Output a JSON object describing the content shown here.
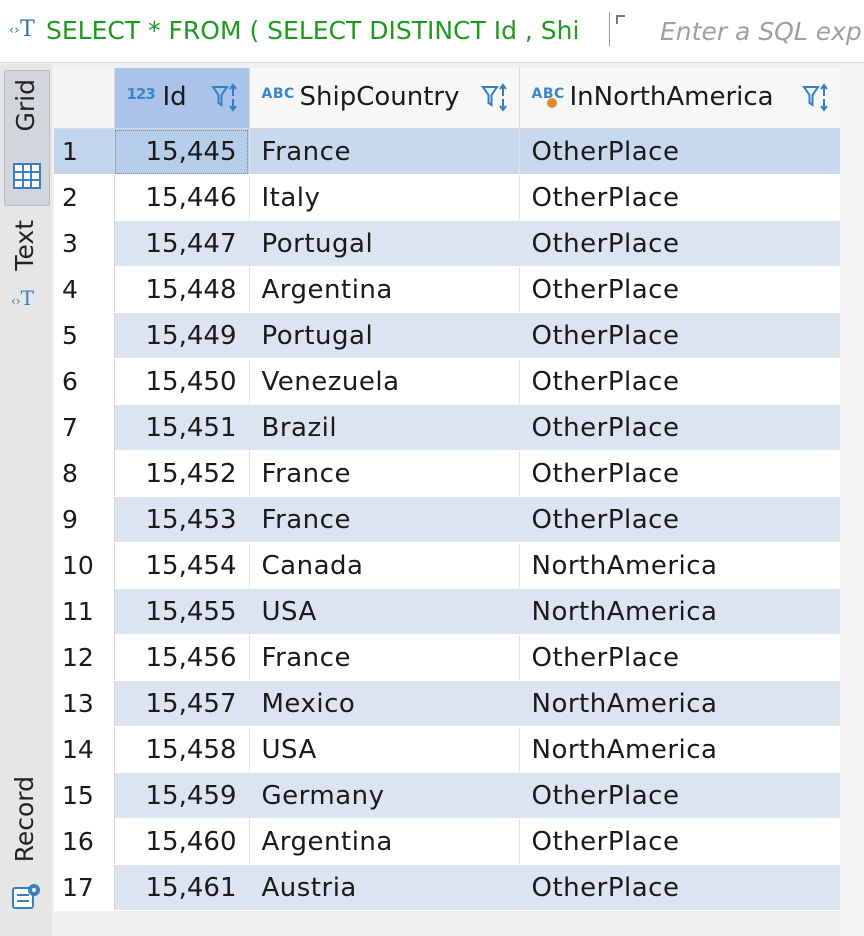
{
  "query": {
    "sql_text": "SELECT * FROM ( SELECT DISTINCT Id , Shi",
    "filter_placeholder": "Enter a SQL exp"
  },
  "sidebar": {
    "tabs": [
      {
        "label": "Grid",
        "icon": "grid-icon",
        "active": true
      },
      {
        "label": "Text",
        "icon": "text-icon",
        "active": false
      },
      {
        "label": "Record",
        "icon": "record-icon",
        "active": false
      }
    ]
  },
  "grid": {
    "columns": [
      {
        "label": "Id",
        "type_icon": "number-type-icon",
        "type_badge": "123"
      },
      {
        "label": "ShipCountry",
        "type_icon": "string-type-icon",
        "type_badge": "ABC"
      },
      {
        "label": "InNorthAmerica",
        "type_icon": "computed-string-type-icon",
        "type_badge": "ABC"
      }
    ],
    "rows": [
      {
        "n": "1",
        "id": "15,445",
        "country": "France",
        "region": "OtherPlace"
      },
      {
        "n": "2",
        "id": "15,446",
        "country": "Italy",
        "region": "OtherPlace"
      },
      {
        "n": "3",
        "id": "15,447",
        "country": "Portugal",
        "region": "OtherPlace"
      },
      {
        "n": "4",
        "id": "15,448",
        "country": "Argentina",
        "region": "OtherPlace"
      },
      {
        "n": "5",
        "id": "15,449",
        "country": "Portugal",
        "region": "OtherPlace"
      },
      {
        "n": "6",
        "id": "15,450",
        "country": "Venezuela",
        "region": "OtherPlace"
      },
      {
        "n": "7",
        "id": "15,451",
        "country": "Brazil",
        "region": "OtherPlace"
      },
      {
        "n": "8",
        "id": "15,452",
        "country": "France",
        "region": "OtherPlace"
      },
      {
        "n": "9",
        "id": "15,453",
        "country": "France",
        "region": "OtherPlace"
      },
      {
        "n": "10",
        "id": "15,454",
        "country": "Canada",
        "region": "NorthAmerica"
      },
      {
        "n": "11",
        "id": "15,455",
        "country": "USA",
        "region": "NorthAmerica"
      },
      {
        "n": "12",
        "id": "15,456",
        "country": "France",
        "region": "OtherPlace"
      },
      {
        "n": "13",
        "id": "15,457",
        "country": "Mexico",
        "region": "NorthAmerica"
      },
      {
        "n": "14",
        "id": "15,458",
        "country": "USA",
        "region": "NorthAmerica"
      },
      {
        "n": "15",
        "id": "15,459",
        "country": "Germany",
        "region": "OtherPlace"
      },
      {
        "n": "16",
        "id": "15,460",
        "country": "Argentina",
        "region": "OtherPlace"
      },
      {
        "n": "17",
        "id": "15,461",
        "country": "Austria",
        "region": "OtherPlace"
      }
    ]
  },
  "colors": {
    "sql_text": "#1e9a1e",
    "alt_row": "#dbe4f0",
    "selected_row": "#c8d9ee",
    "header_selected": "#a9c4e8",
    "type_icon": "#3a86c8"
  }
}
